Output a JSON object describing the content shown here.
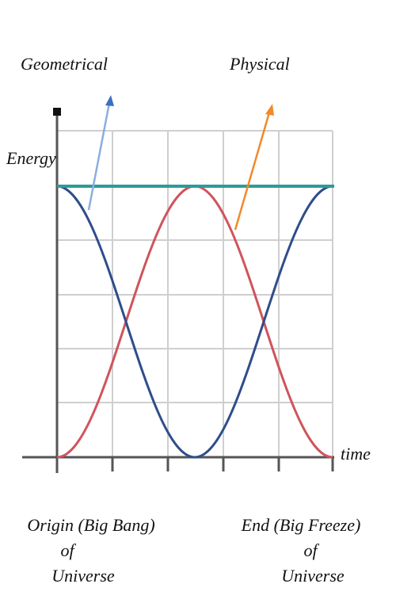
{
  "labels": {
    "geometrical": "Geometrical",
    "physical": "Physical",
    "energy": "Energy",
    "time": "time",
    "origin": {
      "line1": "Origin  (Big Bang)",
      "line2": "of",
      "line3": "Universe"
    },
    "end": {
      "line1": "End (Big Freeze)",
      "line2": "of",
      "line3": "Universe"
    }
  }
}
